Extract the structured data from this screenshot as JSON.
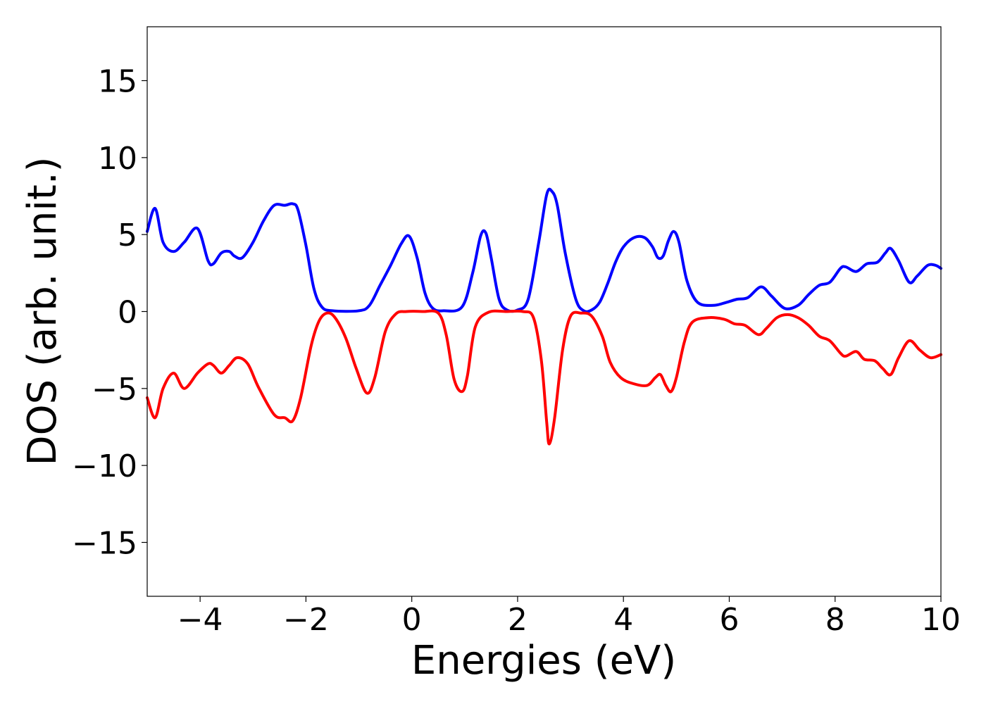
{
  "chart_data": {
    "type": "line",
    "xlabel": "Energies (eV)",
    "ylabel": "DOS (arb. unit.)",
    "xlim": [
      -5,
      10
    ],
    "ylim": [
      -18.5,
      18.5
    ],
    "xticks": [
      -4,
      -2,
      0,
      2,
      4,
      6,
      8,
      10
    ],
    "xtick_labels": [
      "−4",
      "−2",
      "0",
      "2",
      "4",
      "6",
      "8",
      "10"
    ],
    "yticks": [
      -15,
      -10,
      -5,
      0,
      5,
      10,
      15
    ],
    "ytick_labels": [
      "−15",
      "−10",
      "−5",
      "0",
      "5",
      "10",
      "15"
    ],
    "grid": false,
    "series": [
      {
        "color": "#0000ff",
        "x": [
          -5.0,
          -4.85,
          -4.7,
          -4.5,
          -4.3,
          -4.05,
          -3.85,
          -3.75,
          -3.6,
          -3.45,
          -3.35,
          -3.2,
          -3.0,
          -2.8,
          -2.6,
          -2.4,
          -2.25,
          -2.15,
          -2.0,
          -1.85,
          -1.7,
          -1.5,
          -1.0,
          -0.8,
          -0.6,
          -0.4,
          -0.2,
          -0.05,
          0.1,
          0.25,
          0.4,
          0.6,
          0.95,
          1.15,
          1.3,
          1.4,
          1.5,
          1.65,
          1.8,
          2.0,
          2.2,
          2.4,
          2.55,
          2.65,
          2.75,
          2.9,
          3.1,
          3.25,
          3.4,
          3.55,
          3.7,
          3.85,
          4.0,
          4.2,
          4.4,
          4.55,
          4.65,
          4.75,
          4.85,
          4.95,
          5.05,
          5.2,
          5.4,
          5.7,
          5.95,
          6.15,
          6.35,
          6.6,
          6.8,
          7.05,
          7.3,
          7.5,
          7.7,
          7.9,
          8.1,
          8.2,
          8.4,
          8.6,
          8.8,
          8.95,
          9.05,
          9.2,
          9.4,
          9.55,
          9.75,
          9.9,
          10.0
        ],
        "y": [
          5.2,
          6.7,
          4.5,
          3.9,
          4.5,
          5.4,
          3.3,
          3.1,
          3.8,
          3.9,
          3.6,
          3.5,
          4.5,
          5.9,
          6.9,
          6.9,
          7.0,
          6.6,
          4.3,
          1.5,
          0.3,
          0.05,
          0.05,
          0.4,
          1.7,
          3.0,
          4.4,
          4.9,
          3.5,
          1.2,
          0.2,
          0.05,
          0.3,
          2.5,
          4.9,
          5.1,
          3.5,
          0.8,
          0.1,
          0.1,
          0.8,
          4.5,
          7.6,
          7.8,
          6.9,
          3.8,
          0.8,
          0.05,
          0.1,
          0.6,
          1.8,
          3.2,
          4.2,
          4.8,
          4.8,
          4.2,
          3.5,
          3.6,
          4.6,
          5.2,
          4.5,
          2.0,
          0.6,
          0.4,
          0.6,
          0.8,
          0.9,
          1.6,
          1.0,
          0.2,
          0.4,
          1.1,
          1.7,
          1.9,
          2.8,
          2.9,
          2.6,
          3.1,
          3.2,
          3.8,
          4.1,
          3.3,
          1.9,
          2.3,
          3.0,
          3.0,
          2.8
        ]
      },
      {
        "color": "#ff0000",
        "x": [
          -5.0,
          -4.85,
          -4.7,
          -4.5,
          -4.3,
          -4.05,
          -3.85,
          -3.75,
          -3.6,
          -3.45,
          -3.3,
          -3.1,
          -2.9,
          -2.6,
          -2.4,
          -2.25,
          -2.1,
          -1.9,
          -1.75,
          -1.6,
          -1.45,
          -1.25,
          -1.05,
          -0.85,
          -0.7,
          -0.5,
          -0.3,
          -0.1,
          0.2,
          0.5,
          0.65,
          0.8,
          0.95,
          1.05,
          1.2,
          1.45,
          1.8,
          2.1,
          2.3,
          2.45,
          2.55,
          2.6,
          2.7,
          2.85,
          3.0,
          3.2,
          3.4,
          3.6,
          3.75,
          3.95,
          4.2,
          4.45,
          4.6,
          4.7,
          4.8,
          4.9,
          5.0,
          5.15,
          5.3,
          5.6,
          5.9,
          6.1,
          6.3,
          6.55,
          6.7,
          6.9,
          7.1,
          7.3,
          7.5,
          7.7,
          7.9,
          8.1,
          8.2,
          8.4,
          8.55,
          8.75,
          8.9,
          9.05,
          9.2,
          9.4,
          9.6,
          9.8,
          10.0
        ],
        "y": [
          -5.6,
          -6.9,
          -5.0,
          -4.0,
          -5.0,
          -4.0,
          -3.4,
          -3.5,
          -4.0,
          -3.5,
          -3.0,
          -3.4,
          -4.9,
          -6.7,
          -6.9,
          -7.1,
          -5.6,
          -2.2,
          -0.6,
          -0.1,
          -0.4,
          -1.7,
          -3.7,
          -5.3,
          -4.3,
          -1.3,
          -0.15,
          0.0,
          0.0,
          -0.1,
          -1.5,
          -4.4,
          -5.2,
          -4.2,
          -1.0,
          -0.05,
          0.0,
          0.0,
          -0.4,
          -3.2,
          -7.2,
          -8.6,
          -6.9,
          -2.5,
          -0.3,
          -0.1,
          -0.3,
          -1.6,
          -3.3,
          -4.3,
          -4.7,
          -4.8,
          -4.3,
          -4.1,
          -4.8,
          -5.2,
          -4.3,
          -2.0,
          -0.7,
          -0.4,
          -0.5,
          -0.8,
          -0.9,
          -1.5,
          -1.1,
          -0.4,
          -0.2,
          -0.4,
          -0.9,
          -1.6,
          -1.9,
          -2.7,
          -2.9,
          -2.6,
          -3.1,
          -3.2,
          -3.7,
          -4.1,
          -3.0,
          -1.9,
          -2.5,
          -3.0,
          -2.8
        ]
      }
    ]
  }
}
